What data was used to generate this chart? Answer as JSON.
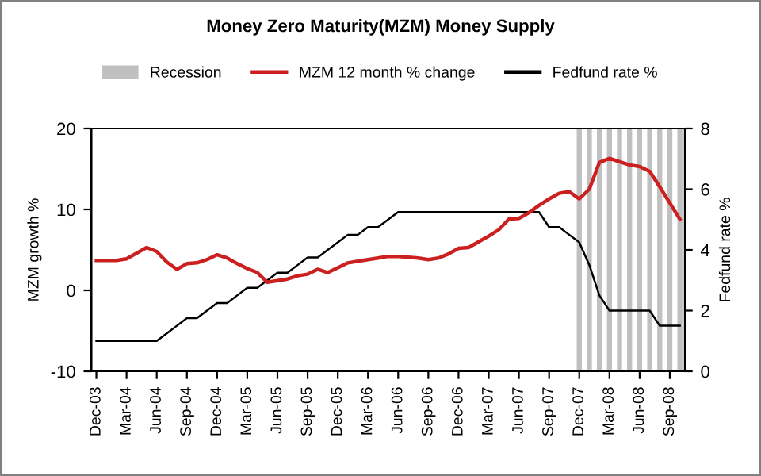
{
  "chart_data": {
    "type": "line",
    "title": "Money Zero Maturity(MZM) Money Supply",
    "ylabel": "MZM growth %",
    "y2label": "Fedfund rate %",
    "categories": [
      "Dec-03",
      null,
      null,
      "Mar-04",
      null,
      null,
      "Jun-04",
      null,
      null,
      "Sep-04",
      null,
      null,
      "Dec-04",
      null,
      null,
      "Mar-05",
      null,
      null,
      "Jun-05",
      null,
      null,
      "Sep-05",
      null,
      null,
      "Dec-05",
      null,
      null,
      "Mar-06",
      null,
      null,
      "Jun-06",
      null,
      null,
      "Sep-06",
      null,
      null,
      "Dec-06",
      null,
      null,
      "Mar-07",
      null,
      null,
      "Jun-07",
      null,
      null,
      "Sep-07",
      null,
      null,
      "Dec-07",
      null,
      null,
      "Mar-08",
      null,
      null,
      "Jun-08",
      null,
      null,
      "Sep-08",
      null
    ],
    "series": [
      {
        "name": "Recession",
        "type": "bar",
        "axis": "y2",
        "color": "#c0c0c0",
        "values": [
          null,
          null,
          null,
          null,
          null,
          null,
          null,
          null,
          null,
          null,
          null,
          null,
          null,
          null,
          null,
          null,
          null,
          null,
          null,
          null,
          null,
          null,
          null,
          null,
          null,
          null,
          null,
          null,
          null,
          null,
          null,
          null,
          null,
          null,
          null,
          null,
          null,
          null,
          null,
          null,
          null,
          null,
          null,
          null,
          null,
          null,
          null,
          null,
          8,
          8,
          8,
          8,
          8,
          8,
          8,
          8,
          8,
          8,
          8
        ]
      },
      {
        "name": "MZM 12 month % change",
        "color": "#cc1f1f",
        "values": [
          3.7,
          3.7,
          3.7,
          3.9,
          4.6,
          5.3,
          4.8,
          3.5,
          2.6,
          3.3,
          3.4,
          3.8,
          4.4,
          4.0,
          3.3,
          2.7,
          2.2,
          1.0,
          1.2,
          1.4,
          1.8,
          2.0,
          2.6,
          2.2,
          2.8,
          3.4,
          3.6,
          3.8,
          4.0,
          4.2,
          4.2,
          4.1,
          4.0,
          3.8,
          4.0,
          4.5,
          5.2,
          5.3,
          6.0,
          6.7,
          7.5,
          8.8,
          8.9,
          9.6,
          10.5,
          11.3,
          12.0,
          12.2,
          11.3,
          12.5,
          15.8,
          16.3,
          15.9,
          15.5,
          15.3,
          14.7,
          12.8,
          10.8,
          8.8
        ]
      },
      {
        "name": "Fedfund rate %",
        "axis": "y2",
        "color": "#000000",
        "values": [
          1,
          1,
          1,
          1,
          1,
          1,
          1,
          1.25,
          1.5,
          1.75,
          1.75,
          2,
          2.25,
          2.25,
          2.5,
          2.75,
          2.75,
          3,
          3.25,
          3.25,
          3.5,
          3.75,
          3.75,
          4,
          4.25,
          4.5,
          4.5,
          4.75,
          4.75,
          5,
          5.25,
          5.25,
          5.25,
          5.25,
          5.25,
          5.25,
          5.25,
          5.25,
          5.25,
          5.25,
          5.25,
          5.25,
          5.25,
          5.25,
          5.25,
          4.75,
          4.75,
          4.5,
          4.25,
          3.5,
          2.5,
          2,
          2,
          2,
          2,
          2,
          1.5,
          1.5,
          1.5
        ]
      }
    ],
    "ylim": [
      -10,
      20
    ],
    "yticks": [
      -10,
      0,
      10,
      20
    ],
    "y2lim": [
      0,
      8
    ],
    "y2ticks": [
      0,
      2,
      4,
      6,
      8
    ],
    "grid": false,
    "legend": "top",
    "marker": "none",
    "line_style": "solid"
  }
}
